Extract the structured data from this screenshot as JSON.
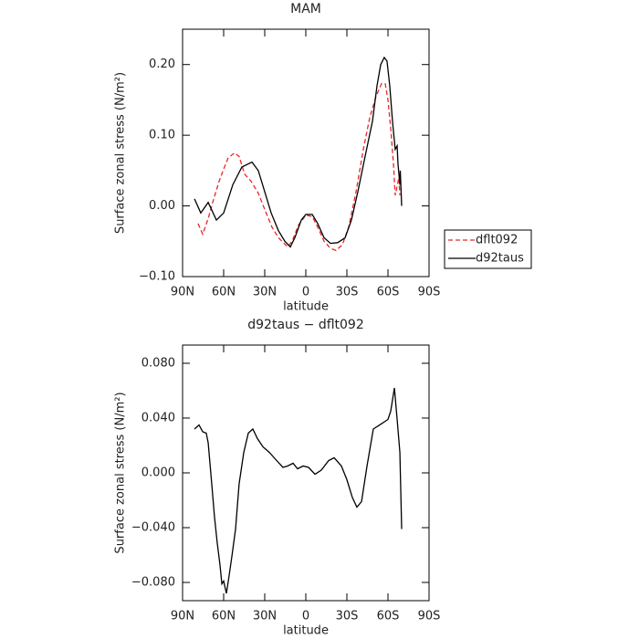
{
  "chart_data": [
    {
      "type": "line",
      "title": "MAM",
      "xlabel": "latitude",
      "ylabel": "Surface zonal stress (N/m²)",
      "xlim": [
        90,
        -90
      ],
      "xticks": [
        {
          "value": 90,
          "label": "90N"
        },
        {
          "value": 60,
          "label": "60N"
        },
        {
          "value": 30,
          "label": "30N"
        },
        0,
        {
          "value": -30,
          "label": "30S"
        },
        {
          "value": -60,
          "label": "60S"
        },
        {
          "value": -90,
          "label": "90S"
        }
      ],
      "ylim": [
        -0.1,
        0.25
      ],
      "yticks": [
        {
          "value": -0.1,
          "label": "−0.10"
        },
        {
          "value": 0,
          "label": "0.00"
        },
        {
          "value": 0.1,
          "label": "0.10"
        },
        {
          "value": 0.2,
          "label": "0.20"
        }
      ],
      "legend": "right",
      "series": [
        {
          "name": "dflt092",
          "color": "#e8262a",
          "style": "dashed",
          "x": [
            78.7,
            75.3,
            71.3,
            68,
            63.3,
            60,
            56.7,
            52,
            48.7,
            44.7,
            40,
            34.7,
            30,
            24.7,
            20,
            13.3,
            10,
            5.3,
            0,
            -4.7,
            -8.7,
            -13.3,
            -18,
            -22,
            -26.7,
            -31.3,
            -36.7,
            -42,
            -46.7,
            -51.3,
            -55.3,
            -58,
            -60,
            -62,
            -64,
            -65.3,
            -66.7,
            -68,
            -68.7
          ],
          "values": [
            -0.025,
            -0.04,
            -0.018,
            0.005,
            0.035,
            0.052,
            0.068,
            0.075,
            0.07,
            0.045,
            0.035,
            0.018,
            -0.005,
            -0.03,
            -0.045,
            -0.058,
            -0.05,
            -0.027,
            -0.013,
            -0.015,
            -0.03,
            -0.05,
            -0.06,
            -0.063,
            -0.055,
            -0.03,
            0.02,
            0.08,
            0.125,
            0.155,
            0.173,
            0.173,
            0.15,
            0.11,
            0.06,
            0.015,
            0.028,
            0.04,
            0.015
          ]
        },
        {
          "name": "d92taus",
          "color": "#000000",
          "style": "solid",
          "x": [
            81.3,
            76.7,
            71.3,
            65.3,
            60,
            53.3,
            46.7,
            39.3,
            34.7,
            30,
            25.3,
            20,
            15.3,
            11.3,
            8,
            3.3,
            0,
            -4.7,
            -8.7,
            -13.3,
            -18,
            -23.3,
            -28.7,
            -33.3,
            -38,
            -43.3,
            -48.7,
            -52,
            -54.7,
            -57.3,
            -59.3,
            -61.3,
            -63.3,
            -65.3,
            -66.7,
            -67.3,
            -68.7,
            -69,
            -70
          ],
          "values": [
            0.01,
            -0.01,
            0.005,
            -0.02,
            -0.01,
            0.03,
            0.055,
            0.062,
            0.05,
            0.02,
            -0.01,
            -0.035,
            -0.05,
            -0.058,
            -0.045,
            -0.02,
            -0.012,
            -0.012,
            -0.025,
            -0.045,
            -0.053,
            -0.052,
            -0.045,
            -0.02,
            0.02,
            0.07,
            0.12,
            0.17,
            0.2,
            0.21,
            0.205,
            0.17,
            0.12,
            0.08,
            0.085,
            0.06,
            0.03,
            0.05,
            0.0
          ]
        }
      ]
    },
    {
      "type": "line",
      "title": "d92taus − dflt092",
      "xlabel": "latitude",
      "ylabel": "Surface zonal stress (N/m²)",
      "xlim": [
        90,
        -90
      ],
      "xticks": [
        {
          "value": 90,
          "label": "90N"
        },
        {
          "value": 60,
          "label": "60N"
        },
        {
          "value": 30,
          "label": "30N"
        },
        0,
        {
          "value": -30,
          "label": "30S"
        },
        {
          "value": -60,
          "label": "60S"
        },
        {
          "value": -90,
          "label": "90S"
        }
      ],
      "ylim": [
        -0.0933,
        0.0933
      ],
      "yticks": [
        {
          "value": -0.08,
          "label": "−0.080"
        },
        {
          "value": -0.04,
          "label": "−0.040"
        },
        {
          "value": 0,
          "label": "0.000"
        },
        {
          "value": 0.04,
          "label": "0.040"
        },
        {
          "value": 0.08,
          "label": "0.080"
        }
      ],
      "series": [
        {
          "color": "#000000",
          "style": "solid",
          "x": [
            81.3,
            78,
            75.3,
            72.7,
            71.3,
            68.7,
            66.7,
            64.7,
            62.7,
            61.3,
            60,
            58,
            56,
            54,
            51.3,
            48.7,
            45.3,
            42,
            38.7,
            35.3,
            31.3,
            26.7,
            21.3,
            16.7,
            13.3,
            9.3,
            6,
            2,
            -2,
            -6.7,
            -11.3,
            -16.7,
            -20.7,
            -26,
            -30,
            -34,
            -37.3,
            -40.7,
            -44.7,
            -49.3,
            -54,
            -60,
            -62,
            -64.7,
            -66.7,
            -68.7,
            -70
          ],
          "values": [
            0.032,
            0.035,
            0.03,
            0.029,
            0.022,
            -0.008,
            -0.032,
            -0.051,
            -0.067,
            -0.081,
            -0.079,
            -0.088,
            -0.075,
            -0.061,
            -0.041,
            -0.008,
            0.015,
            0.029,
            0.032,
            0.025,
            0.019,
            0.015,
            0.009,
            0.004,
            0.005,
            0.007,
            0.003,
            0.005,
            0.004,
            -0.001,
            0.002,
            0.009,
            0.011,
            0.005,
            -0.005,
            -0.018,
            -0.025,
            -0.021,
            0.005,
            0.032,
            0.035,
            0.039,
            0.045,
            0.062,
            0.039,
            0.015,
            -0.041
          ]
        }
      ]
    }
  ]
}
